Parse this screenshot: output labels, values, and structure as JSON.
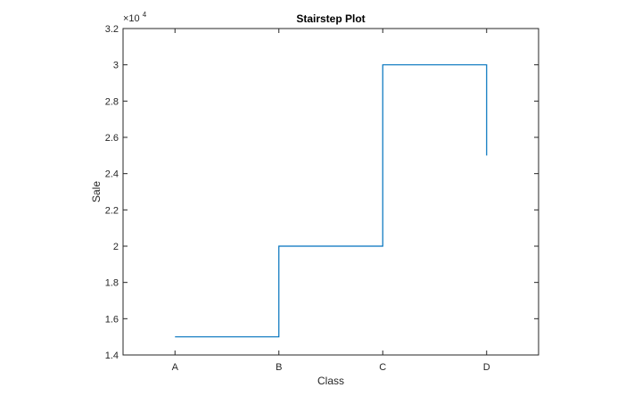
{
  "chart_data": {
    "type": "line",
    "style": "stairs",
    "title": "Stairstep Plot",
    "xlabel": "Class",
    "ylabel": "Sale",
    "categories": [
      "A",
      "B",
      "C",
      "D"
    ],
    "values": [
      15000,
      20000,
      30000,
      25000
    ],
    "ylim": [
      14000,
      32000
    ],
    "y_ticks": [
      14000,
      16000,
      18000,
      20000,
      22000,
      24000,
      26000,
      28000,
      30000,
      32000
    ],
    "y_tick_labels": [
      "1.4",
      "1.6",
      "1.8",
      "2",
      "2.2",
      "2.4",
      "2.6",
      "2.8",
      "3",
      "3.2"
    ],
    "y_exponent_base": "×10",
    "y_exponent_power": "4",
    "grid": false,
    "line_color": "#0072BD",
    "axis_color": "#262626"
  }
}
